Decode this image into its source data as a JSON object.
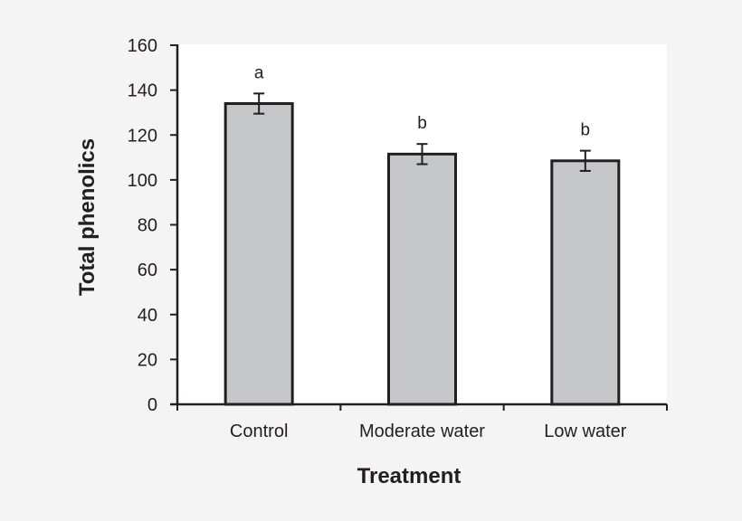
{
  "chart_data": {
    "type": "bar",
    "categories": [
      "Control",
      "Moderate water",
      "Low water"
    ],
    "values": [
      134,
      111.5,
      108.5
    ],
    "errors": [
      4.5,
      4.5,
      4.5
    ],
    "significance_labels": [
      "a",
      "b",
      "b"
    ],
    "title": "",
    "xlabel": "Treatment",
    "ylabel": "Total phenolics",
    "ylim": [
      0,
      160
    ],
    "yticks": [
      0,
      20,
      40,
      60,
      80,
      100,
      120,
      140,
      160
    ],
    "grid": false,
    "colors": {
      "bar": "#c6c7c9",
      "bar_edge": "#231f20",
      "plot_bg": "#ffffff",
      "page_bg": "#f4f4f4"
    }
  }
}
